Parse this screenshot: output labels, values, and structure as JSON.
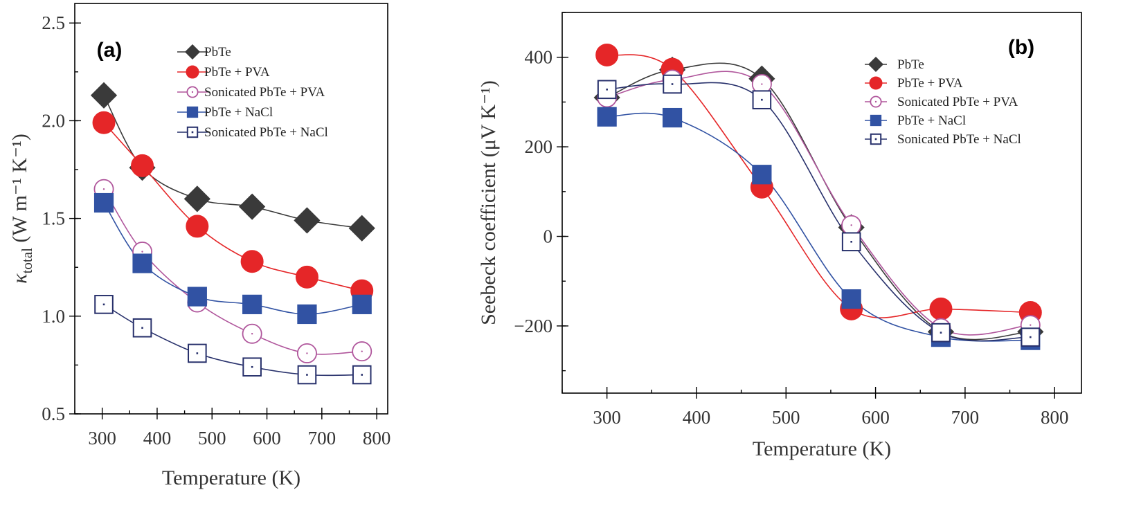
{
  "chart_data": [
    {
      "panel": "(a)",
      "type": "line",
      "xlabel": "Temperature (K)",
      "ylabel_main": "κ",
      "ylabel_sub": "total",
      "ylabel_units": " (W m⁻¹ K⁻¹)",
      "xlim": [
        250,
        820
      ],
      "ylim": [
        0.5,
        2.6
      ],
      "xticks": [
        300,
        400,
        500,
        600,
        700,
        800
      ],
      "yticks": [
        0.5,
        1.0,
        1.5,
        2.0,
        2.5
      ],
      "ytick_labels": [
        "0.5",
        "1.0",
        "1.5",
        "2.0",
        "2.5"
      ],
      "legend_position": "top-right",
      "x": [
        303,
        373,
        473,
        573,
        673,
        773
      ],
      "series": [
        {
          "name": "PbTe",
          "marker": "diamond",
          "color": "#3a3a3a",
          "line_color": "#3a3a3a",
          "values": [
            2.13,
            1.76,
            1.6,
            1.56,
            1.49,
            1.45
          ]
        },
        {
          "name": "PbTe + PVA",
          "marker": "circle",
          "color": "#e52628",
          "line_color": "#e52628",
          "values": [
            1.99,
            1.77,
            1.46,
            1.28,
            1.2,
            1.13
          ]
        },
        {
          "name": "Sonicated PbTe + PVA",
          "marker": "open-circle",
          "color": "#b0569c",
          "line_color": "#b0569c",
          "values": [
            1.65,
            1.33,
            1.07,
            0.91,
            0.81,
            0.82
          ]
        },
        {
          "name": "PbTe + NaCl",
          "marker": "square",
          "color": "#3152a3",
          "line_color": "#3152a3",
          "values": [
            1.58,
            1.27,
            1.1,
            1.06,
            1.01,
            1.06
          ]
        },
        {
          "name": "Sonicated PbTe + NaCl",
          "marker": "open-square",
          "color": "#27306b",
          "line_color": "#27306b",
          "values": [
            1.06,
            0.94,
            0.81,
            0.74,
            0.7,
            0.7
          ]
        }
      ]
    },
    {
      "panel": "(b)",
      "type": "line",
      "xlabel": "Temperature (K)",
      "ylabel": "Seebeck coefficient (μV K⁻¹)",
      "xlim": [
        250,
        830
      ],
      "ylim": [
        -350,
        500
      ],
      "xticks": [
        300,
        400,
        500,
        600,
        700,
        800
      ],
      "yticks": [
        -200,
        0,
        200,
        400
      ],
      "ytick_labels": [
        "−200",
        "0",
        "200",
        "400"
      ],
      "legend_position": "top-right",
      "x": [
        300,
        373,
        473,
        573,
        673,
        773
      ],
      "series": [
        {
          "name": "PbTe",
          "marker": "diamond",
          "color": "#3a3a3a",
          "line_color": "#3a3a3a",
          "values": [
            310,
            372,
            352,
            20,
            -213,
            -213
          ]
        },
        {
          "name": "PbTe + PVA",
          "marker": "circle",
          "color": "#e52628",
          "line_color": "#e52628",
          "values": [
            405,
            373,
            110,
            -162,
            -162,
            -170
          ]
        },
        {
          "name": "Sonicated PbTe + PVA",
          "marker": "open-circle",
          "color": "#b0569c",
          "line_color": "#b0569c",
          "values": [
            310,
            350,
            340,
            25,
            -205,
            -198
          ]
        },
        {
          "name": "PbTe + NaCl",
          "marker": "square",
          "color": "#3152a3",
          "line_color": "#3152a3",
          "values": [
            267,
            265,
            138,
            -140,
            -225,
            -232
          ]
        },
        {
          "name": "Sonicated PbTe + NaCl",
          "marker": "open-square",
          "color": "#27306b",
          "line_color": "#27306b",
          "values": [
            328,
            340,
            305,
            -12,
            -215,
            -225
          ]
        }
      ]
    }
  ]
}
